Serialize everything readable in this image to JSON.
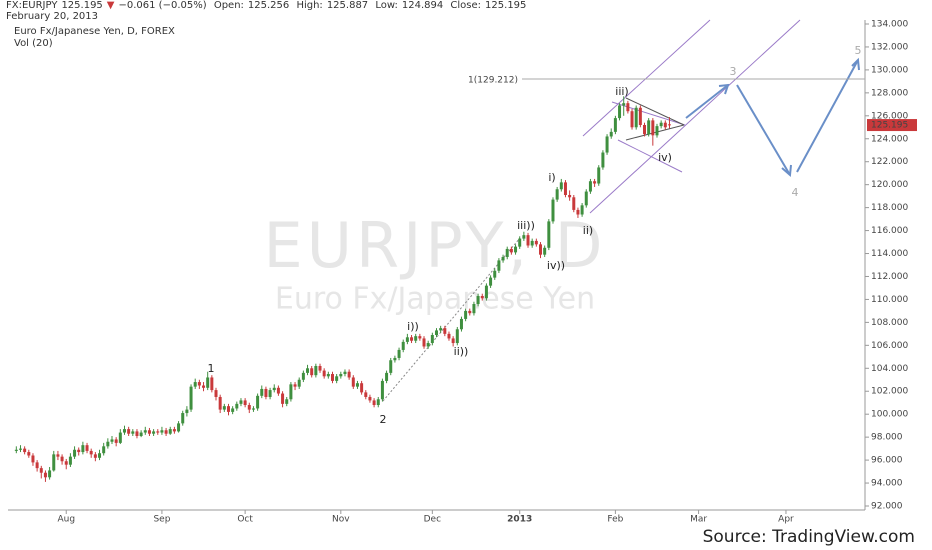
{
  "chart_data": {
    "type": "candlestick",
    "symbol": "FX:EURJPY",
    "change": "−0.061 (−0.05%)",
    "open_label": "Open:",
    "high_label": "High:",
    "low_label": "Low:",
    "close_label": "Close:",
    "date": "February 20, 2013",
    "title": "Euro Fx/Japanese Yen, D, FOREX",
    "indicator": "Vol (20)",
    "watermark": "EURJPY, D",
    "watermark_subtitle": "Euro Fx/Japanese Yen",
    "source": "Source: TradingView.com",
    "up_color": "#3f8f3f",
    "down_color": "#c9393b",
    "ylim": [
      92,
      134
    ],
    "yticks": [
      {
        "value": 92,
        "label": "92.000"
      },
      {
        "value": 94,
        "label": "94.000"
      },
      {
        "value": 96,
        "label": "96.000"
      },
      {
        "value": 98,
        "label": "98.000"
      },
      {
        "value": 100,
        "label": "100.000"
      },
      {
        "value": 102,
        "label": "102.000"
      },
      {
        "value": 104,
        "label": "104.000"
      },
      {
        "value": 106,
        "label": "106.000"
      },
      {
        "value": 108,
        "label": "108.000"
      },
      {
        "value": 110,
        "label": "110.000"
      },
      {
        "value": 112,
        "label": "112.000"
      },
      {
        "value": 114,
        "label": "114.000"
      },
      {
        "value": 116,
        "label": "116.000"
      },
      {
        "value": 118,
        "label": "118.000"
      },
      {
        "value": 120,
        "label": "120.000"
      },
      {
        "value": 122,
        "label": "122.000"
      },
      {
        "value": 124,
        "label": "124.000"
      },
      {
        "value": 126,
        "label": "126.000"
      },
      {
        "value": 128,
        "label": "128.000"
      },
      {
        "value": 130,
        "label": "130.000"
      },
      {
        "value": 132,
        "label": "132.000"
      },
      {
        "value": 134,
        "label": "134.000"
      }
    ],
    "xlim": [
      -2,
      204
    ],
    "xticks": [
      {
        "value": 12,
        "label": "Aug"
      },
      {
        "value": 35,
        "label": "Sep"
      },
      {
        "value": 55,
        "label": "Oct"
      },
      {
        "value": 78,
        "label": "Nov"
      },
      {
        "value": 100,
        "label": "Dec"
      },
      {
        "value": 121,
        "label": "2013"
      },
      {
        "value": 144,
        "label": "Feb"
      },
      {
        "value": 164,
        "label": "Mar"
      },
      {
        "value": 185,
        "label": "Apr"
      }
    ],
    "grid": false,
    "level": 129.212,
    "level_label": "1(129.212)",
    "annotations": [
      "1",
      "2",
      "i))",
      "ii))",
      "iii))",
      "iv))",
      "i)",
      "ii)",
      "iii)",
      "iv)",
      "3",
      "4",
      "5"
    ],
    "ohlc": [
      [
        96.8,
        97.2,
        96.6,
        96.9
      ],
      [
        96.9,
        97.3,
        96.7,
        97.0
      ],
      [
        97.0,
        97.2,
        96.5,
        96.7
      ],
      [
        96.7,
        96.9,
        96.2,
        96.4
      ],
      [
        96.4,
        96.6,
        95.5,
        95.8
      ],
      [
        95.8,
        96.0,
        95.0,
        95.3
      ],
      [
        95.3,
        95.5,
        94.4,
        94.9
      ],
      [
        94.9,
        95.1,
        94.1,
        94.5
      ],
      [
        94.5,
        95.4,
        94.3,
        95.1
      ],
      [
        95.1,
        96.8,
        95.0,
        96.5
      ],
      [
        96.5,
        96.8,
        96.0,
        96.3
      ],
      [
        96.3,
        96.5,
        95.6,
        95.9
      ],
      [
        95.9,
        96.1,
        95.2,
        95.6
      ],
      [
        95.6,
        96.6,
        95.4,
        96.3
      ],
      [
        96.3,
        97.2,
        96.1,
        96.9
      ],
      [
        96.9,
        97.1,
        96.4,
        96.7
      ],
      [
        96.7,
        97.6,
        96.5,
        97.3
      ],
      [
        97.3,
        97.5,
        96.6,
        96.8
      ],
      [
        96.8,
        97.0,
        96.2,
        96.5
      ],
      [
        96.5,
        96.7,
        95.9,
        96.2
      ],
      [
        96.2,
        96.9,
        96.0,
        96.6
      ],
      [
        96.6,
        97.5,
        96.4,
        97.2
      ],
      [
        97.2,
        97.9,
        97.0,
        97.6
      ],
      [
        97.6,
        98.1,
        97.4,
        97.8
      ],
      [
        97.8,
        98.0,
        97.2,
        97.5
      ],
      [
        97.5,
        98.7,
        97.4,
        98.4
      ],
      [
        98.4,
        99.0,
        98.2,
        98.7
      ],
      [
        98.7,
        98.9,
        98.1,
        98.3
      ],
      [
        98.3,
        98.7,
        98.1,
        98.5
      ],
      [
        98.5,
        98.7,
        97.9,
        98.1
      ],
      [
        98.1,
        98.6,
        98.0,
        98.4
      ],
      [
        98.4,
        98.9,
        98.2,
        98.6
      ],
      [
        98.6,
        98.8,
        98.1,
        98.3
      ],
      [
        98.3,
        98.7,
        98.1,
        98.5
      ],
      [
        98.5,
        98.7,
        98.2,
        98.4
      ],
      [
        98.4,
        98.9,
        98.2,
        98.6
      ],
      [
        98.6,
        98.8,
        98.1,
        98.3
      ],
      [
        98.3,
        98.9,
        98.2,
        98.7
      ],
      [
        98.7,
        98.9,
        98.3,
        98.5
      ],
      [
        98.5,
        99.4,
        98.4,
        99.2
      ],
      [
        99.2,
        100.3,
        99.0,
        100.1
      ],
      [
        100.1,
        100.7,
        99.8,
        100.4
      ],
      [
        100.4,
        102.6,
        100.2,
        102.4
      ],
      [
        102.4,
        103.1,
        102.2,
        102.8
      ],
      [
        102.8,
        103.0,
        102.2,
        102.5
      ],
      [
        102.5,
        102.8,
        102.0,
        102.3
      ],
      [
        102.3,
        103.7,
        102.1,
        103.2
      ],
      [
        103.2,
        103.4,
        101.9,
        102.1
      ],
      [
        102.1,
        102.3,
        101.2,
        101.5
      ],
      [
        101.5,
        101.7,
        100.1,
        100.4
      ],
      [
        100.4,
        100.9,
        100.2,
        100.7
      ],
      [
        100.7,
        100.9,
        99.9,
        100.2
      ],
      [
        100.2,
        100.7,
        100.0,
        100.5
      ],
      [
        100.5,
        101.1,
        100.3,
        100.9
      ],
      [
        100.9,
        101.4,
        100.7,
        101.2
      ],
      [
        101.2,
        101.4,
        100.6,
        100.8
      ],
      [
        100.8,
        101.0,
        100.1,
        100.4
      ],
      [
        100.4,
        100.7,
        100.2,
        100.5
      ],
      [
        100.5,
        101.8,
        100.3,
        101.6
      ],
      [
        101.6,
        102.5,
        101.4,
        102.2
      ],
      [
        102.2,
        102.4,
        101.3,
        101.5
      ],
      [
        101.5,
        102.3,
        101.3,
        102.1
      ],
      [
        102.1,
        102.6,
        101.9,
        102.3
      ],
      [
        102.3,
        102.5,
        101.6,
        101.8
      ],
      [
        101.8,
        102.0,
        100.6,
        100.9
      ],
      [
        100.9,
        101.5,
        100.7,
        101.3
      ],
      [
        101.3,
        102.8,
        101.1,
        102.6
      ],
      [
        102.6,
        102.8,
        102.1,
        102.4
      ],
      [
        102.4,
        103.2,
        102.2,
        103.0
      ],
      [
        103.0,
        103.8,
        102.8,
        103.6
      ],
      [
        103.6,
        104.3,
        103.4,
        104.0
      ],
      [
        104.0,
        104.2,
        103.2,
        103.4
      ],
      [
        103.4,
        104.4,
        103.2,
        104.2
      ],
      [
        104.2,
        104.4,
        103.6,
        103.8
      ],
      [
        103.8,
        104.0,
        103.1,
        103.3
      ],
      [
        103.3,
        103.7,
        103.1,
        103.5
      ],
      [
        103.5,
        103.7,
        102.7,
        102.9
      ],
      [
        102.9,
        103.5,
        102.7,
        103.3
      ],
      [
        103.3,
        103.7,
        103.1,
        103.5
      ],
      [
        103.5,
        103.9,
        103.3,
        103.7
      ],
      [
        103.7,
        103.9,
        103.0,
        103.2
      ],
      [
        103.2,
        103.4,
        102.2,
        102.4
      ],
      [
        102.4,
        102.9,
        102.2,
        102.7
      ],
      [
        102.7,
        102.9,
        101.7,
        101.9
      ],
      [
        101.9,
        102.1,
        101.3,
        101.5
      ],
      [
        101.5,
        101.7,
        101.0,
        101.2
      ],
      [
        101.2,
        101.4,
        100.6,
        100.8
      ],
      [
        100.8,
        101.5,
        100.6,
        101.3
      ],
      [
        101.3,
        103.1,
        101.1,
        102.9
      ],
      [
        102.9,
        103.8,
        102.7,
        103.6
      ],
      [
        103.6,
        104.9,
        103.4,
        104.7
      ],
      [
        104.7,
        105.1,
        104.5,
        104.9
      ],
      [
        104.9,
        105.8,
        104.7,
        105.6
      ],
      [
        105.6,
        106.5,
        105.4,
        106.3
      ],
      [
        106.3,
        107.0,
        106.1,
        106.7
      ],
      [
        106.7,
        106.9,
        106.2,
        106.4
      ],
      [
        106.4,
        107.0,
        106.2,
        106.8
      ],
      [
        106.8,
        107.0,
        106.4,
        106.6
      ],
      [
        106.6,
        106.8,
        105.7,
        105.9
      ],
      [
        105.9,
        106.4,
        105.7,
        106.2
      ],
      [
        106.2,
        107.1,
        106.0,
        106.9
      ],
      [
        106.9,
        107.5,
        106.7,
        107.3
      ],
      [
        107.3,
        107.7,
        107.1,
        107.5
      ],
      [
        107.5,
        107.7,
        106.8,
        107.0
      ],
      [
        107.0,
        107.2,
        106.4,
        106.6
      ],
      [
        106.6,
        106.8,
        105.9,
        106.2
      ],
      [
        106.2,
        107.6,
        106.0,
        107.4
      ],
      [
        107.4,
        108.5,
        107.2,
        108.3
      ],
      [
        108.3,
        109.2,
        108.1,
        109.0
      ],
      [
        109.0,
        109.2,
        108.6,
        108.8
      ],
      [
        108.8,
        109.8,
        108.6,
        109.6
      ],
      [
        109.6,
        110.5,
        109.4,
        110.3
      ],
      [
        110.3,
        110.5,
        109.9,
        110.1
      ],
      [
        110.1,
        111.4,
        109.9,
        111.2
      ],
      [
        111.2,
        112.1,
        111.0,
        111.9
      ],
      [
        111.9,
        112.7,
        111.7,
        112.5
      ],
      [
        112.5,
        113.6,
        112.3,
        113.4
      ],
      [
        113.4,
        113.9,
        113.2,
        113.7
      ],
      [
        113.7,
        114.6,
        113.5,
        114.4
      ],
      [
        114.4,
        114.6,
        113.9,
        114.1
      ],
      [
        114.1,
        114.8,
        113.9,
        114.6
      ],
      [
        114.6,
        115.5,
        114.4,
        115.3
      ],
      [
        115.3,
        115.9,
        115.1,
        115.6
      ],
      [
        115.6,
        115.8,
        114.5,
        114.7
      ],
      [
        114.7,
        115.3,
        114.5,
        115.1
      ],
      [
        115.1,
        115.3,
        114.6,
        114.8
      ],
      [
        114.8,
        115.0,
        113.6,
        113.9
      ],
      [
        113.9,
        114.7,
        113.7,
        114.5
      ],
      [
        114.5,
        117.0,
        114.3,
        116.8
      ],
      [
        116.8,
        118.9,
        116.6,
        118.7
      ],
      [
        118.7,
        119.8,
        118.5,
        119.6
      ],
      [
        119.6,
        120.5,
        119.4,
        120.2
      ],
      [
        120.2,
        120.4,
        118.9,
        119.1
      ],
      [
        119.1,
        119.5,
        118.6,
        118.9
      ],
      [
        118.9,
        119.1,
        117.6,
        117.8
      ],
      [
        117.8,
        118.0,
        117.1,
        117.4
      ],
      [
        117.4,
        118.4,
        117.2,
        118.2
      ],
      [
        118.2,
        119.6,
        118.0,
        119.4
      ],
      [
        119.4,
        120.5,
        119.2,
        120.3
      ],
      [
        120.3,
        120.5,
        119.8,
        120.1
      ],
      [
        120.1,
        121.7,
        119.9,
        121.5
      ],
      [
        121.5,
        123.0,
        121.3,
        122.8
      ],
      [
        122.8,
        124.4,
        122.6,
        124.2
      ],
      [
        124.2,
        124.9,
        124.0,
        124.6
      ],
      [
        124.6,
        126.0,
        124.4,
        125.8
      ],
      [
        125.8,
        127.1,
        125.6,
        126.9
      ],
      [
        126.9,
        127.7,
        126.0,
        127.1
      ],
      [
        127.1,
        127.3,
        126.2,
        126.4
      ],
      [
        126.4,
        126.6,
        124.8,
        125.0
      ],
      [
        125.0,
        126.9,
        124.8,
        126.7
      ],
      [
        126.7,
        126.9,
        125.0,
        125.2
      ],
      [
        125.2,
        125.4,
        124.2,
        124.4
      ],
      [
        124.4,
        125.8,
        124.2,
        125.6
      ],
      [
        125.6,
        125.8,
        123.4,
        124.3
      ],
      [
        124.3,
        125.3,
        124.1,
        125.1
      ],
      [
        125.1,
        125.6,
        124.9,
        125.4
      ],
      [
        125.4,
        125.6,
        124.8,
        125.0
      ],
      [
        125.256,
        125.887,
        124.894,
        125.195
      ]
    ]
  }
}
